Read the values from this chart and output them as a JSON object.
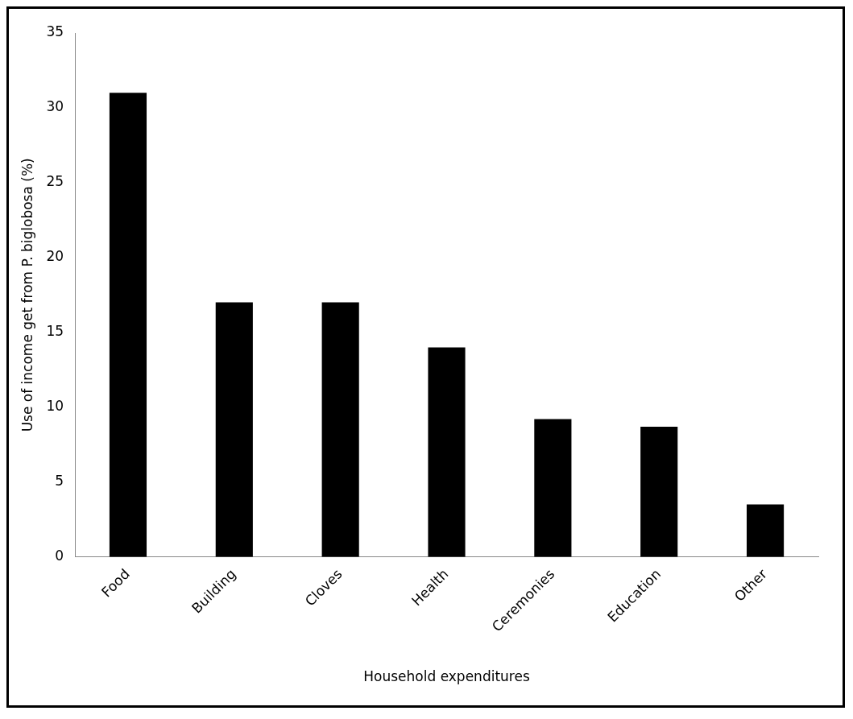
{
  "chart_data": {
    "type": "bar",
    "xlabel": "Household expenditures",
    "ylabel": "Use of income get from P. biglobosa (%)",
    "categories": [
      "Food",
      "Building",
      "Cloves",
      "Health",
      "Ceremonies",
      "Education",
      "Other"
    ],
    "values": [
      31,
      17,
      17,
      14,
      9.2,
      8.7,
      3.5
    ],
    "color": "#000000",
    "ylim": [
      0,
      35
    ],
    "yticks": [
      0,
      5,
      10,
      15,
      20,
      25,
      30,
      35
    ],
    "grid": false,
    "legend": false
  }
}
